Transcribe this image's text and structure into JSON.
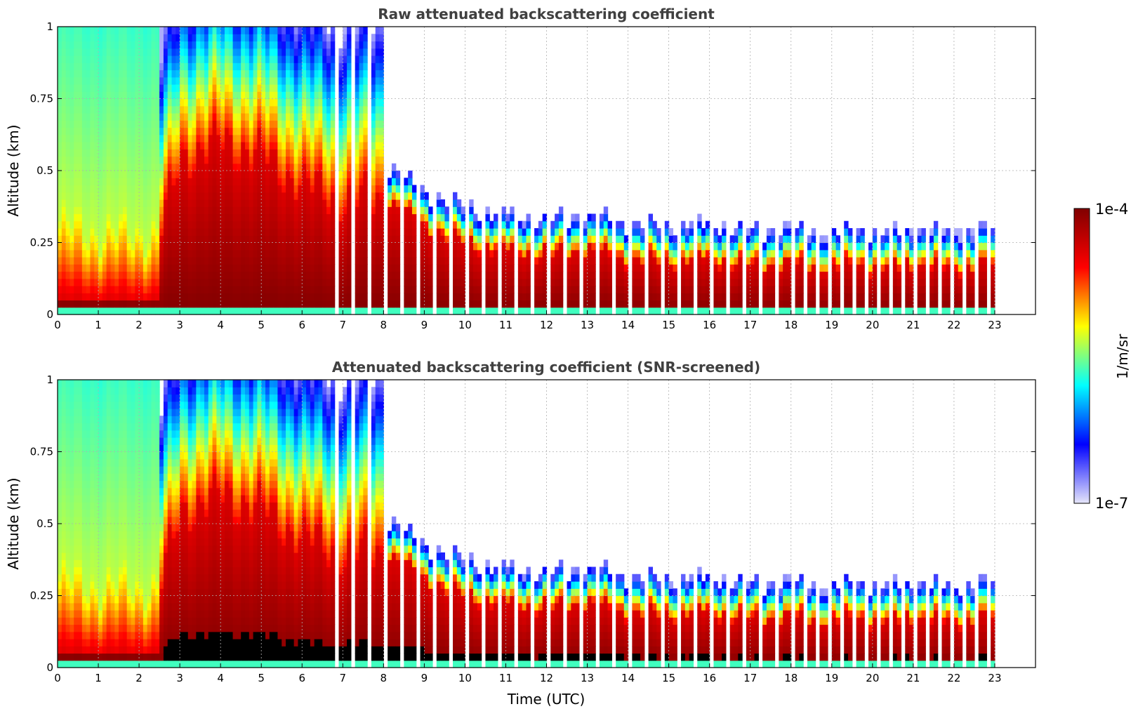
{
  "chart_data": [
    {
      "type": "heatmap",
      "title": "Raw attenuated backscattering coefficient",
      "xlabel": "",
      "ylabel": "Altitude (km)",
      "xlim": [
        0,
        24
      ],
      "ylim": [
        0,
        1
      ],
      "x_ticks": [
        "0",
        "1",
        "2",
        "3",
        "4",
        "5",
        "6",
        "7",
        "8",
        "9",
        "10",
        "11",
        "12",
        "13",
        "14",
        "15",
        "16",
        "17",
        "18",
        "19",
        "20",
        "21",
        "22",
        "23"
      ],
      "y_ticks": [
        "0",
        "0.25",
        "0.5",
        "0.75",
        "1"
      ],
      "grid": true,
      "screened": false,
      "data_end_hour": 23.0,
      "boundary_layer_top_km": [
        {
          "t": 0.0,
          "z": 0.33
        },
        {
          "t": 1.0,
          "z": 0.3
        },
        {
          "t": 2.0,
          "z": 0.3
        },
        {
          "t": 2.5,
          "z": 0.3
        },
        {
          "t": 3.0,
          "z": 0.55
        },
        {
          "t": 4.0,
          "z": 0.6
        },
        {
          "t": 5.0,
          "z": 0.55
        },
        {
          "t": 6.0,
          "z": 0.45
        },
        {
          "t": 7.0,
          "z": 0.4
        },
        {
          "t": 8.0,
          "z": 0.4
        },
        {
          "t": 9.0,
          "z": 0.3
        },
        {
          "t": 10.0,
          "z": 0.25
        },
        {
          "t": 11.0,
          "z": 0.23
        },
        {
          "t": 12.0,
          "z": 0.21
        },
        {
          "t": 13.0,
          "z": 0.22
        },
        {
          "t": 14.0,
          "z": 0.19
        },
        {
          "t": 15.0,
          "z": 0.19
        },
        {
          "t": 16.0,
          "z": 0.2
        },
        {
          "t": 17.0,
          "z": 0.17
        },
        {
          "t": 18.0,
          "z": 0.17
        },
        {
          "t": 19.0,
          "z": 0.17
        },
        {
          "t": 20.0,
          "z": 0.17
        },
        {
          "t": 21.0,
          "z": 0.17
        },
        {
          "t": 22.0,
          "z": 0.17
        },
        {
          "t": 23.0,
          "z": 0.17
        }
      ]
    },
    {
      "type": "heatmap",
      "title": "Attenuated backscattering coefficient (SNR-screened)",
      "xlabel": "Time (UTC)",
      "ylabel": "Altitude (km)",
      "xlim": [
        0,
        24
      ],
      "ylim": [
        0,
        1
      ],
      "x_ticks": [
        "0",
        "1",
        "2",
        "3",
        "4",
        "5",
        "6",
        "7",
        "8",
        "9",
        "10",
        "11",
        "12",
        "13",
        "14",
        "15",
        "16",
        "17",
        "18",
        "19",
        "20",
        "21",
        "22",
        "23"
      ],
      "y_ticks": [
        "0",
        "0.25",
        "0.5",
        "0.75",
        "1"
      ],
      "grid": true,
      "screened": true,
      "data_end_hour": 23.0
    }
  ],
  "colorbar": {
    "label": "1/m/sr",
    "max_label": "1e-4",
    "min_label": "1e-7",
    "log_min": -7,
    "log_max": -4,
    "colormap": [
      "#e6e6fa",
      "#0000ff",
      "#00ffff",
      "#ffff00",
      "#ff0000",
      "#800000"
    ]
  }
}
